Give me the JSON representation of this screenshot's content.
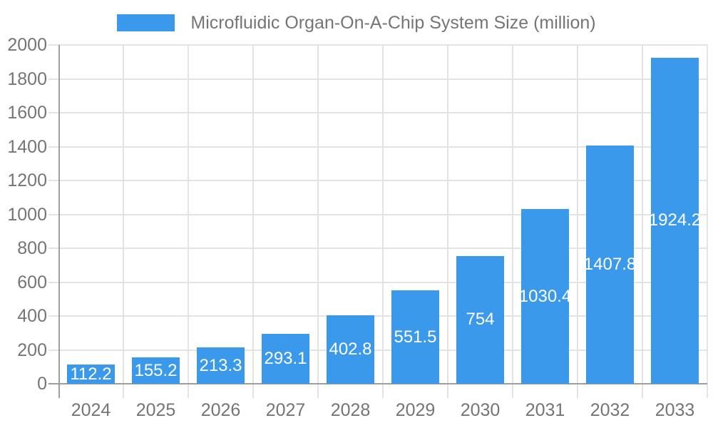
{
  "chart_data": {
    "type": "bar",
    "title": "Microfluidic Organ-On-A-Chip System Size (million)",
    "categories": [
      "2024",
      "2025",
      "2026",
      "2027",
      "2028",
      "2029",
      "2030",
      "2031",
      "2032",
      "2033"
    ],
    "values": [
      112.2,
      155.2,
      213.3,
      293.1,
      402.8,
      551.5,
      754,
      1030.4,
      1407.8,
      1924.2
    ],
    "value_labels": [
      "112.2",
      "155.2",
      "213.3",
      "293.1",
      "402.8",
      "551.5",
      "754",
      "1030.4",
      "1407.8",
      "1924.2"
    ],
    "xlabel": "",
    "ylabel": "",
    "ylim": [
      0,
      2000
    ],
    "ytick_step": 200,
    "ytick_labels": [
      "0",
      "200",
      "400",
      "600",
      "800",
      "1000",
      "1200",
      "1400",
      "1600",
      "1800",
      "2000"
    ],
    "grid": true,
    "legend_position": "top-center",
    "bar_color": "#3b99ec",
    "bar_label_color": "#ffffff",
    "axis_text_color": "#757575",
    "axis_line_color": "#9e9e9e",
    "grid_color": "#e3e3e3",
    "background_color": "#ffffff"
  }
}
